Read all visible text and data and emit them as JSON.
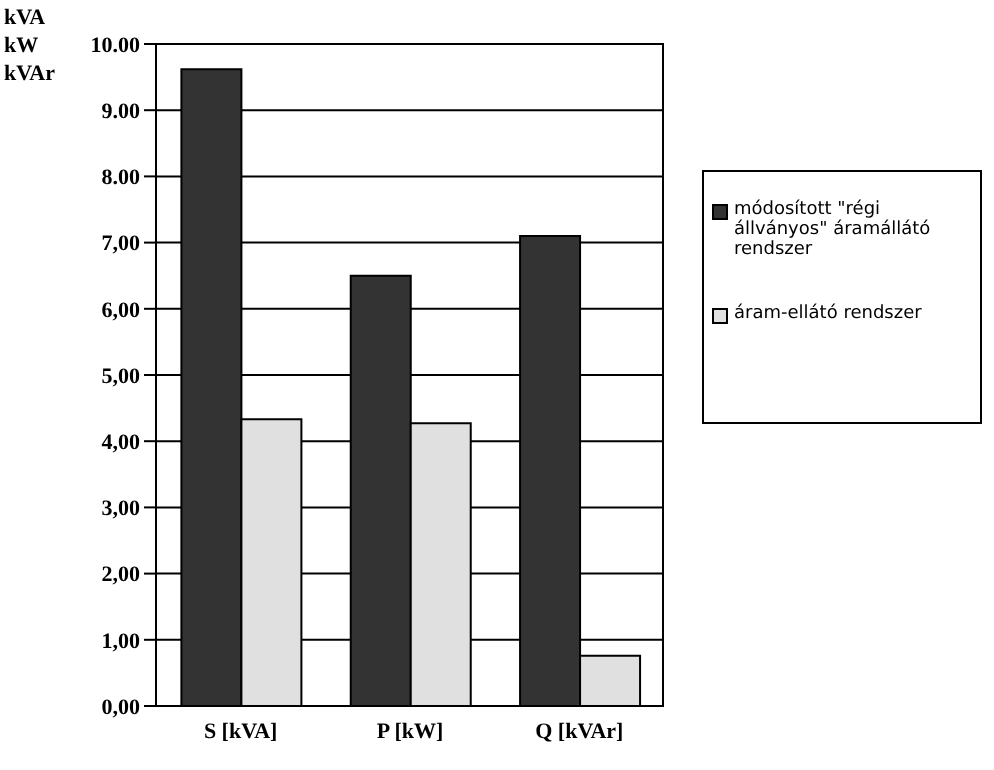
{
  "chart_data": {
    "type": "bar",
    "ylabel": "kVA\nkW\nkVAr",
    "categories": [
      "S [kVA]",
      "P [kW]",
      "Q [kVAr]"
    ],
    "series": [
      {
        "name": "módosított \"régi állványos\" áramállátó rendszer",
        "color": "#333333",
        "values": [
          9.62,
          6.5,
          7.1
        ]
      },
      {
        "name": "áram-ellátó rendszer",
        "color": "#e0e0e0",
        "values": [
          4.33,
          4.27,
          0.76
        ]
      }
    ],
    "ylim": [
      0,
      10
    ],
    "yticks": [
      {
        "value": 0,
        "label": "0,00"
      },
      {
        "value": 1,
        "label": "1,00"
      },
      {
        "value": 2,
        "label": "2,00"
      },
      {
        "value": 3,
        "label": "3,00"
      },
      {
        "value": 4,
        "label": "4,00"
      },
      {
        "value": 5,
        "label": "5,00"
      },
      {
        "value": 6,
        "label": "6,00"
      },
      {
        "value": 7,
        "label": "7,00"
      },
      {
        "value": 8,
        "label": "8.00"
      },
      {
        "value": 9,
        "label": "9.00"
      },
      {
        "value": 10,
        "label": "10.00"
      }
    ],
    "grid": "y",
    "legend": "right"
  }
}
